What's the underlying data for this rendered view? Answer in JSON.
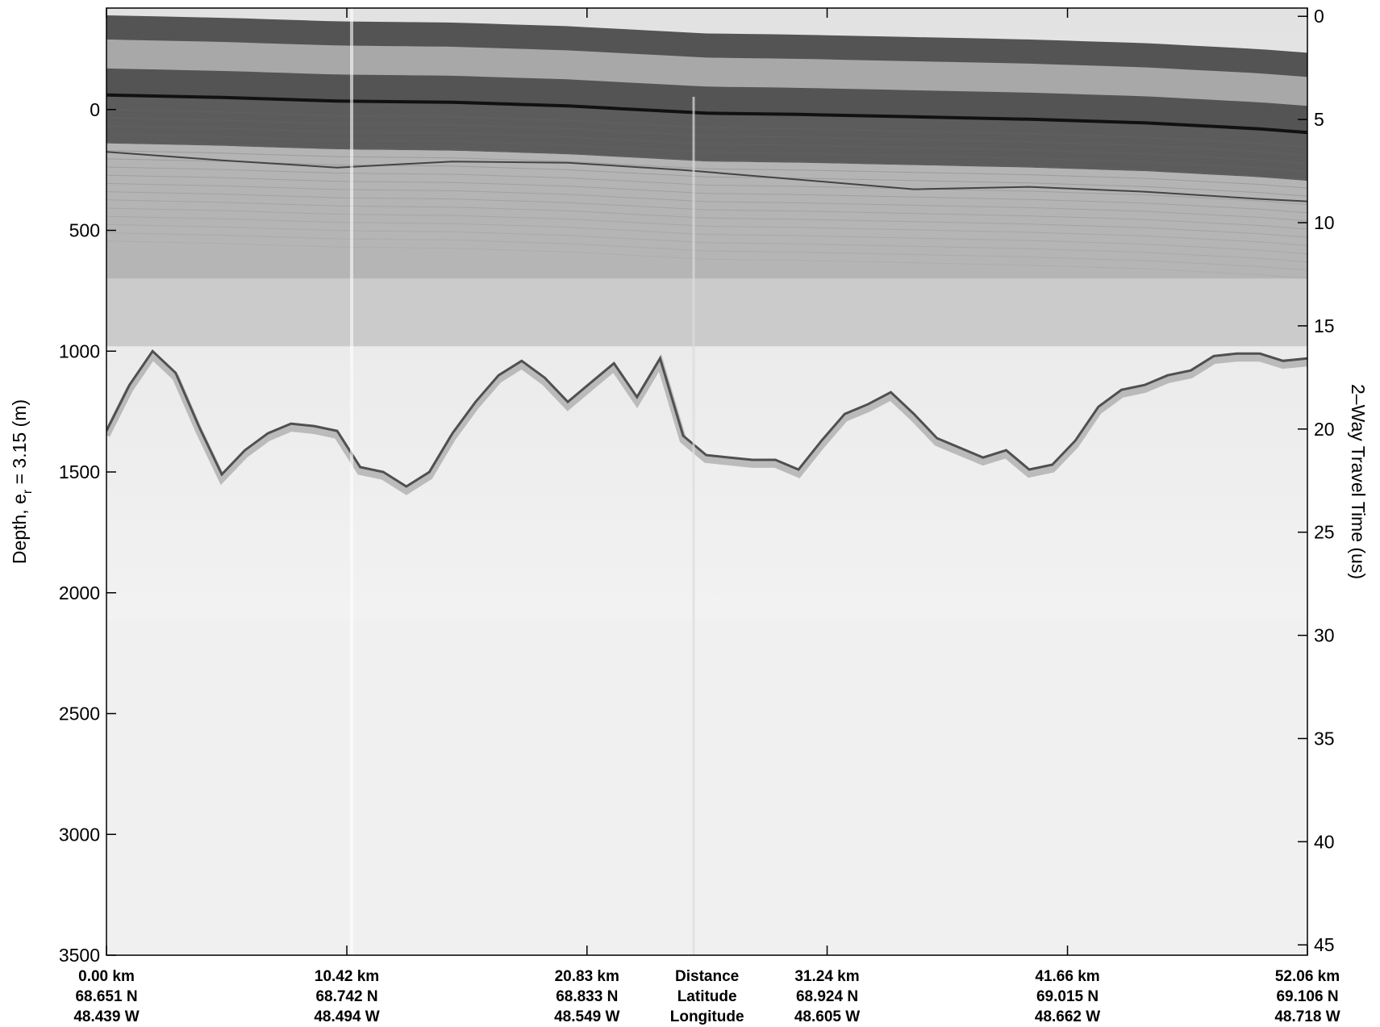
{
  "chart_data": {
    "type": "heatmap",
    "description_kind": "radar echogram",
    "colormap": "grayscale",
    "ylabel_left_main": "Depth, e",
    "ylabel_left_sub": "r",
    "ylabel_left_rest": " = 3.15 (m)",
    "ylabel_right": "2–Way Travel Time (us)",
    "left_axis": {
      "ticks": [
        0,
        500,
        1000,
        1500,
        2000,
        2500,
        3000,
        3500
      ],
      "ylim": [
        -420,
        3500
      ],
      "reversed": true
    },
    "right_axis": {
      "ticks": [
        0,
        5,
        10,
        15,
        20,
        25,
        30,
        35,
        40,
        45
      ],
      "ylim": [
        -0.4,
        45.5
      ],
      "reversed": true
    },
    "x_ticks": [
      {
        "distance": "0.00 km",
        "latitude": "68.651 N",
        "longitude": "48.439 W"
      },
      {
        "distance": "10.42 km",
        "latitude": "68.742 N",
        "longitude": "48.494 W"
      },
      {
        "distance": "20.83 km",
        "latitude": "68.833 N",
        "longitude": "48.549 W"
      },
      {
        "distance": "31.24 km",
        "latitude": "68.924 N",
        "longitude": "48.605 W"
      },
      {
        "distance": "41.66 km",
        "latitude": "69.015 N",
        "longitude": "48.662 W"
      },
      {
        "distance": "52.06 km",
        "latitude": "69.106 N",
        "longitude": "48.718 W"
      }
    ],
    "x_row_titles": [
      "Distance",
      "Latitude",
      "Longitude"
    ],
    "x_km": [
      0,
      10.42,
      20.83,
      31.24,
      41.66,
      52.06
    ],
    "surface_depth": {
      "x_km": [
        0,
        5,
        10,
        15,
        20,
        25,
        26,
        30,
        35,
        40,
        45,
        50,
        52.06
      ],
      "depth_m": [
        -60,
        -50,
        -35,
        -30,
        -15,
        10,
        15,
        20,
        30,
        40,
        55,
        80,
        95
      ]
    },
    "internal_layer_depth": {
      "x_km": [
        0,
        5,
        10,
        15,
        20,
        25,
        30,
        35,
        40,
        45,
        50,
        52.06
      ],
      "depth_m": [
        175,
        210,
        240,
        215,
        220,
        250,
        290,
        330,
        320,
        340,
        370,
        380
      ]
    },
    "bed_depth": {
      "x_km": [
        0,
        1,
        2,
        3,
        4,
        5,
        6,
        7,
        8,
        9,
        10,
        11,
        12,
        13,
        14,
        15,
        16,
        17,
        18,
        19,
        20,
        21,
        22,
        23,
        24,
        25,
        26,
        27,
        28,
        29,
        30,
        31,
        32,
        33,
        34,
        35,
        36,
        37,
        38,
        39,
        40,
        41,
        42,
        43,
        44,
        45,
        46,
        47,
        48,
        49,
        50,
        51,
        52.06
      ],
      "depth_m": [
        1330,
        1140,
        1000,
        1090,
        1310,
        1510,
        1410,
        1340,
        1300,
        1310,
        1330,
        1480,
        1500,
        1560,
        1500,
        1340,
        1210,
        1100,
        1040,
        1110,
        1210,
        1130,
        1050,
        1190,
        1030,
        1350,
        1430,
        1440,
        1450,
        1450,
        1490,
        1370,
        1260,
        1220,
        1170,
        1260,
        1360,
        1400,
        1440,
        1410,
        1490,
        1470,
        1370,
        1230,
        1160,
        1140,
        1100,
        1080,
        1020,
        1010,
        1010,
        1040,
        1030
      ]
    }
  }
}
